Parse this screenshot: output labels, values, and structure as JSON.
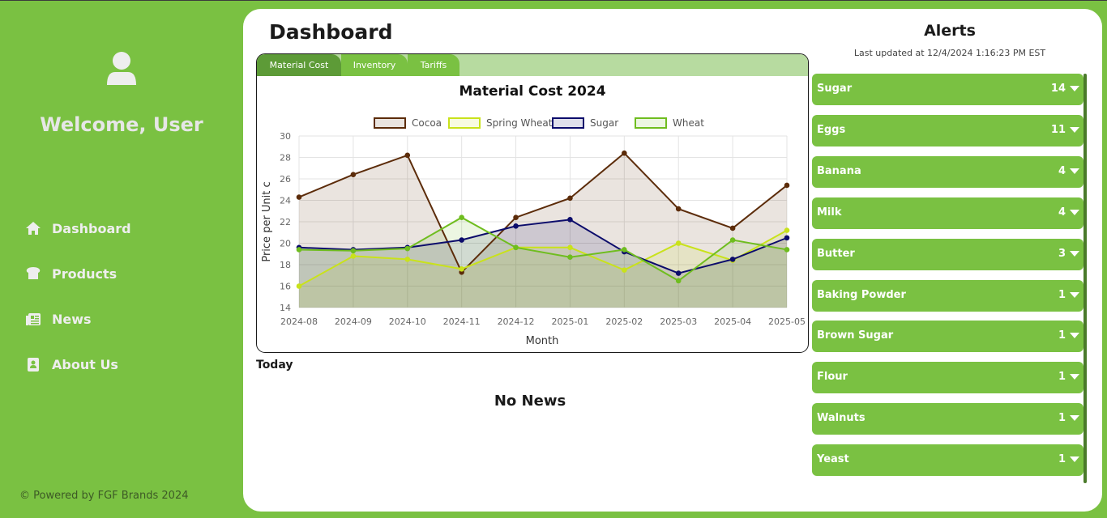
{
  "sidebar": {
    "welcome": "Welcome, User",
    "nav": [
      {
        "label": "Dashboard",
        "icon": "home-icon"
      },
      {
        "label": "Products",
        "icon": "bread-icon"
      },
      {
        "label": "News",
        "icon": "newspaper-icon"
      },
      {
        "label": "About Us",
        "icon": "contact-book-icon"
      }
    ],
    "footer": "© Powered by FGF Brands 2024"
  },
  "main": {
    "title": "Dashboard",
    "tabs": [
      {
        "label": "Material Cost",
        "active": true
      },
      {
        "label": "Inventory",
        "active": false
      },
      {
        "label": "Tariffs",
        "active": false
      }
    ],
    "today_label": "Today",
    "no_news": "No News"
  },
  "alerts": {
    "title": "Alerts",
    "updated": "Last updated at 12/4/2024 1:16:23 PM EST",
    "items": [
      {
        "name": "Sugar",
        "count": "14"
      },
      {
        "name": "Eggs",
        "count": "11"
      },
      {
        "name": "Banana",
        "count": "4"
      },
      {
        "name": "Milk",
        "count": "4"
      },
      {
        "name": "Butter",
        "count": "3"
      },
      {
        "name": "Baking Powder",
        "count": "1"
      },
      {
        "name": "Brown Sugar",
        "count": "1"
      },
      {
        "name": "Flour",
        "count": "1"
      },
      {
        "name": "Walnuts",
        "count": "1"
      },
      {
        "name": "Yeast",
        "count": "1"
      }
    ]
  },
  "colors": {
    "brand_green": "#7ac142",
    "tab_active": "#5d9b37"
  },
  "chart_data": {
    "type": "area",
    "title": "Material Cost 2024",
    "xlabel": "Month",
    "ylabel": "Price per Unit c",
    "ylim": [
      14,
      30
    ],
    "yticks": [
      14,
      16,
      18,
      20,
      22,
      24,
      26,
      28,
      30
    ],
    "grid": true,
    "legend_position": "top",
    "categories": [
      "2024-08",
      "2024-09",
      "2024-10",
      "2024-11",
      "2024-12",
      "2025-01",
      "2025-02",
      "2025-03",
      "2025-04",
      "2025-05"
    ],
    "series": [
      {
        "name": "Cocoa",
        "color": "#5c2c0a",
        "fill": "rgba(92,44,10,0.13)",
        "values": [
          24.3,
          26.4,
          28.2,
          17.3,
          22.4,
          24.2,
          28.4,
          23.2,
          21.4,
          25.4
        ]
      },
      {
        "name": "Spring Wheat",
        "color": "#c9e21b",
        "fill": "rgba(201,226,27,0.13)",
        "values": [
          16.0,
          18.8,
          18.5,
          17.6,
          19.6,
          19.6,
          17.5,
          20.0,
          18.4,
          21.2
        ]
      },
      {
        "name": "Sugar",
        "color": "#0c0c6b",
        "fill": "rgba(12,12,107,0.13)",
        "values": [
          19.6,
          19.4,
          19.6,
          20.3,
          21.6,
          22.2,
          19.2,
          17.2,
          18.5,
          20.5
        ]
      },
      {
        "name": "Wheat",
        "color": "#6fbd1f",
        "fill": "rgba(111,189,31,0.13)",
        "values": [
          19.4,
          19.3,
          19.5,
          22.4,
          19.6,
          18.7,
          19.4,
          16.5,
          20.3,
          19.4
        ]
      }
    ]
  }
}
